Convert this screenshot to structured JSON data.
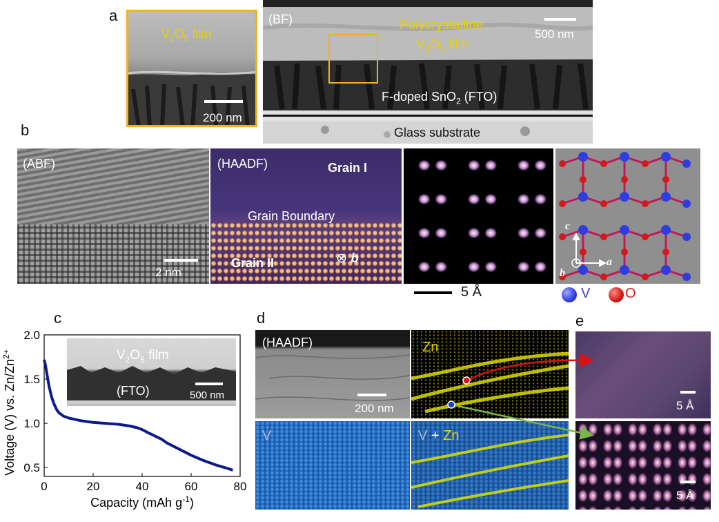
{
  "panels": {
    "a": "a",
    "b": "b",
    "c": "c",
    "d": "d",
    "e": "e"
  },
  "a": {
    "inset_label_pre": "V",
    "inset_label_sub": "2",
    "inset_label_mid": "O",
    "inset_label_sub2": "5",
    "inset_label_post": " film",
    "inset_scale": "200 nm",
    "bf": "(BF)",
    "poly_line1": "Polycrystalline",
    "poly_line2_pre": "V",
    "poly_line2_sub": "2",
    "poly_line2_mid": "O",
    "poly_line2_sub2": "5",
    "poly_line2_post": " film",
    "scale": "500 nm",
    "fto_pre": "F-doped SnO",
    "fto_sub": "2",
    "fto_post": " (FTO)",
    "glass": "Glass substrate"
  },
  "b": {
    "abf": "(ABF)",
    "abf_scale": "2 nm",
    "haadf": "(HAADF)",
    "grain1": "Grain I",
    "boundary": "Grain Boundary",
    "grain2": "Grain II",
    "axis_b": "b",
    "scale": "5 Å",
    "axis_c": "c",
    "axis_a": "a",
    "axis_b2": "b",
    "legend_v": "V",
    "legend_o": "O"
  },
  "c": {
    "inset_pre": "V",
    "inset_sub": "2",
    "inset_mid": "O",
    "inset_sub2": "5",
    "inset_post": " film",
    "inset_fto": "(FTO)",
    "inset_scale": "500 nm"
  },
  "d": {
    "haadf": "(HAADF)",
    "scale": "200 nm",
    "zn": "Zn",
    "v": "V",
    "vzn_v": "V",
    "vzn_plus": " + ",
    "vzn_zn": "Zn"
  },
  "e": {
    "scale1": "5 Å",
    "scale2": "5 Å"
  },
  "chart_data": {
    "type": "line",
    "xlabel": "Capacity (mAh g-1)",
    "ylabel": "Voltage (V) vs. Zn/Zn2+",
    "xlim": [
      0,
      80
    ],
    "ylim": [
      0.4,
      2.0
    ],
    "xticks": [
      0,
      20,
      40,
      60,
      80
    ],
    "yticks": [
      0.5,
      1.0,
      1.5,
      2.0
    ],
    "xtick_labels": [
      "0",
      "20",
      "40",
      "60",
      "80"
    ],
    "ytick_labels": [
      "0.5",
      "1.0",
      "1.5",
      "2.0"
    ],
    "series": [
      {
        "color": "#0d1a8c",
        "x": [
          0,
          0.5,
          1,
          2,
          3,
          4,
          5,
          6,
          8,
          10,
          15,
          20,
          25,
          30,
          35,
          38,
          40,
          42,
          45,
          48,
          50,
          55,
          60,
          65,
          70,
          75,
          77
        ],
        "y": [
          1.72,
          1.66,
          1.58,
          1.42,
          1.3,
          1.22,
          1.16,
          1.12,
          1.08,
          1.06,
          1.03,
          1.01,
          1.0,
          0.99,
          0.97,
          0.95,
          0.93,
          0.9,
          0.86,
          0.82,
          0.78,
          0.71,
          0.64,
          0.58,
          0.53,
          0.49,
          0.47
        ]
      }
    ]
  },
  "colors": {
    "yellow": "#e6d200",
    "orange": "#f2b21b",
    "curve": "#0d1a8c",
    "vatom": "#2f3de0",
    "oatom": "#d21a1a"
  }
}
